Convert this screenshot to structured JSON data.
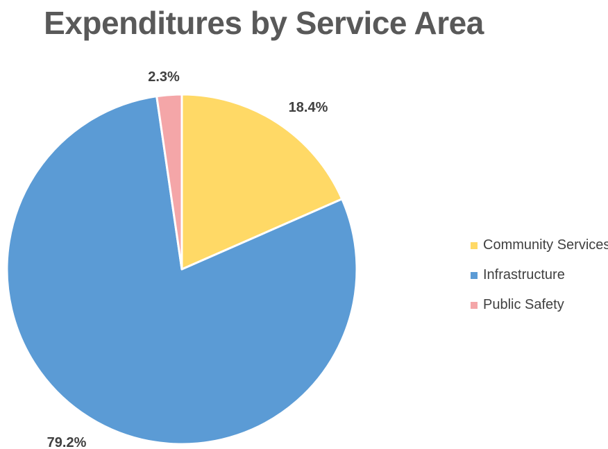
{
  "chart_data": {
    "type": "pie",
    "title": "Expenditures by Service Area",
    "slices": [
      {
        "name": "Community Services",
        "value": 18.4,
        "label": "18.4%",
        "color": "#FFD966"
      },
      {
        "name": "Infrastructure",
        "value": 79.2,
        "label": "79.2%",
        "color": "#5B9BD5"
      },
      {
        "name": "Public Safety",
        "value": 2.3,
        "label": "2.3%",
        "color": "#F4A6A8"
      }
    ],
    "start": "12 o'clock",
    "direction": "clockwise",
    "legend_position": "right"
  }
}
